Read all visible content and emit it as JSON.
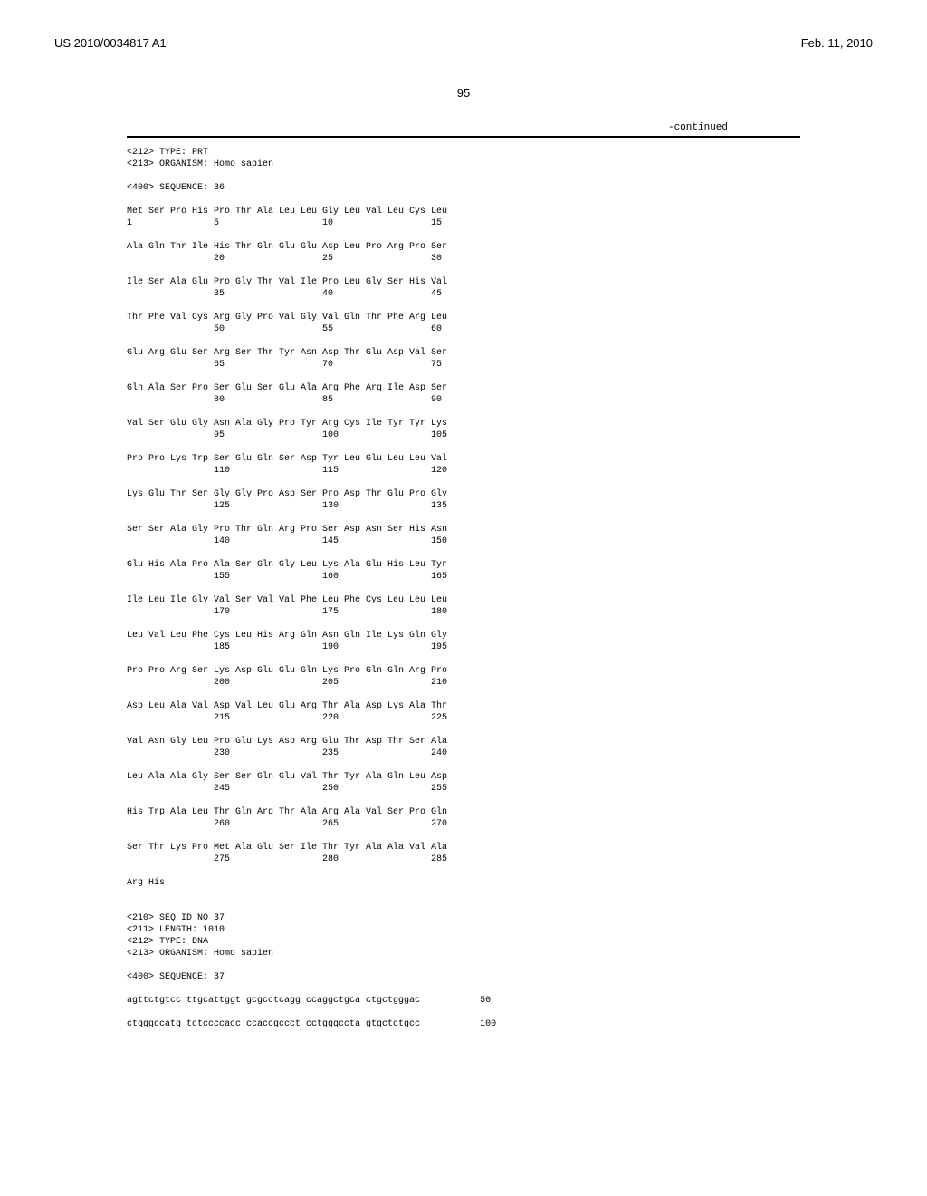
{
  "header": {
    "left": "US 2010/0034817 A1",
    "right": "Feb. 11, 2010"
  },
  "page_number": "95",
  "continued_label": "-continued",
  "seq36_meta": [
    "<212> TYPE: PRT",
    "<213> ORGANISM: Homo sapien",
    "",
    "<400> SEQUENCE: 36"
  ],
  "seq36_rows": [
    {
      "aa": "Met Ser Pro His Pro Thr Ala Leu Leu Gly Leu Val Leu Cys Leu",
      "nums": "1               5                   10                  15"
    },
    {
      "aa": "Ala Gln Thr Ile His Thr Gln Glu Glu Asp Leu Pro Arg Pro Ser",
      "nums": "                20                  25                  30"
    },
    {
      "aa": "Ile Ser Ala Glu Pro Gly Thr Val Ile Pro Leu Gly Ser His Val",
      "nums": "                35                  40                  45"
    },
    {
      "aa": "Thr Phe Val Cys Arg Gly Pro Val Gly Val Gln Thr Phe Arg Leu",
      "nums": "                50                  55                  60"
    },
    {
      "aa": "Glu Arg Glu Ser Arg Ser Thr Tyr Asn Asp Thr Glu Asp Val Ser",
      "nums": "                65                  70                  75"
    },
    {
      "aa": "Gln Ala Ser Pro Ser Glu Ser Glu Ala Arg Phe Arg Ile Asp Ser",
      "nums": "                80                  85                  90"
    },
    {
      "aa": "Val Ser Glu Gly Asn Ala Gly Pro Tyr Arg Cys Ile Tyr Tyr Lys",
      "nums": "                95                  100                 105"
    },
    {
      "aa": "Pro Pro Lys Trp Ser Glu Gln Ser Asp Tyr Leu Glu Leu Leu Val",
      "nums": "                110                 115                 120"
    },
    {
      "aa": "Lys Glu Thr Ser Gly Gly Pro Asp Ser Pro Asp Thr Glu Pro Gly",
      "nums": "                125                 130                 135"
    },
    {
      "aa": "Ser Ser Ala Gly Pro Thr Gln Arg Pro Ser Asp Asn Ser His Asn",
      "nums": "                140                 145                 150"
    },
    {
      "aa": "Glu His Ala Pro Ala Ser Gln Gly Leu Lys Ala Glu His Leu Tyr",
      "nums": "                155                 160                 165"
    },
    {
      "aa": "Ile Leu Ile Gly Val Ser Val Val Phe Leu Phe Cys Leu Leu Leu",
      "nums": "                170                 175                 180"
    },
    {
      "aa": "Leu Val Leu Phe Cys Leu His Arg Gln Asn Gln Ile Lys Gln Gly",
      "nums": "                185                 190                 195"
    },
    {
      "aa": "Pro Pro Arg Ser Lys Asp Glu Glu Gln Lys Pro Gln Gln Arg Pro",
      "nums": "                200                 205                 210"
    },
    {
      "aa": "Asp Leu Ala Val Asp Val Leu Glu Arg Thr Ala Asp Lys Ala Thr",
      "nums": "                215                 220                 225"
    },
    {
      "aa": "Val Asn Gly Leu Pro Glu Lys Asp Arg Glu Thr Asp Thr Ser Ala",
      "nums": "                230                 235                 240"
    },
    {
      "aa": "Leu Ala Ala Gly Ser Ser Gln Glu Val Thr Tyr Ala Gln Leu Asp",
      "nums": "                245                 250                 255"
    },
    {
      "aa": "His Trp Ala Leu Thr Gln Arg Thr Ala Arg Ala Val Ser Pro Gln",
      "nums": "                260                 265                 270"
    },
    {
      "aa": "Ser Thr Lys Pro Met Ala Glu Ser Ile Thr Tyr Ala Ala Val Ala",
      "nums": "                275                 280                 285"
    }
  ],
  "seq36_tail": "Arg His",
  "seq37_meta": [
    "<210> SEQ ID NO 37",
    "<211> LENGTH: 1010",
    "<212> TYPE: DNA",
    "<213> ORGANISM: Homo sapien",
    "",
    "<400> SEQUENCE: 37"
  ],
  "seq37_rows": [
    {
      "seq": "agttctgtcc ttgcattggt gcgcctcagg ccaggctgca ctgctgggac",
      "pos": "50"
    },
    {
      "seq": "ctgggccatg tctccccacc ccaccgccct cctgggccta gtgctctgcc",
      "pos": "100"
    }
  ]
}
